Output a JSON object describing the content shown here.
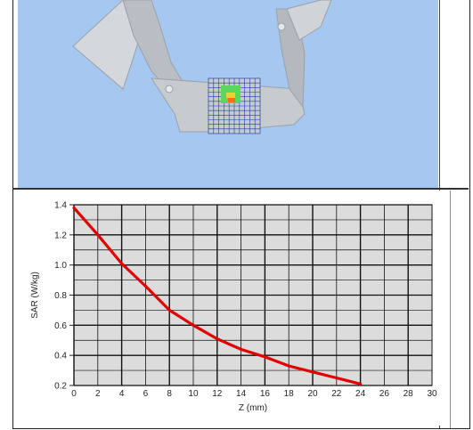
{
  "colors": {
    "sky": "#a6c8f0",
    "phantom": "#c3c8ce",
    "plot_bg": "#dcdcdc",
    "curve": "#e00000",
    "scan_grid": "#1f3fa0"
  },
  "icons": {
    "phantom": "3d-flat-phantom-render",
    "scan": "sar-scan-grid-hotspot"
  },
  "chart_data": {
    "type": "line",
    "title": "",
    "xlabel": "Z (mm)",
    "ylabel": "SAR (W/kg)",
    "xlim": [
      0,
      30
    ],
    "ylim": [
      0.2,
      1.4
    ],
    "grid": true,
    "x_ticks": [
      "0",
      "2",
      "4",
      "6",
      "8",
      "10",
      "12",
      "14",
      "16",
      "18",
      "20",
      "22",
      "24",
      "26",
      "28",
      "30"
    ],
    "y_ticks": [
      "0.2",
      "0.4",
      "0.6",
      "0.8",
      "1.0",
      "1.2",
      "1.4"
    ],
    "series": [
      {
        "color": "#e00000",
        "x": [
          0,
          2,
          4,
          6,
          8,
          10,
          12,
          14,
          16,
          18,
          20,
          22,
          24
        ],
        "y": [
          1.38,
          1.2,
          1.01,
          0.86,
          0.7,
          0.6,
          0.51,
          0.44,
          0.39,
          0.33,
          0.29,
          0.25,
          0.21
        ]
      }
    ]
  }
}
